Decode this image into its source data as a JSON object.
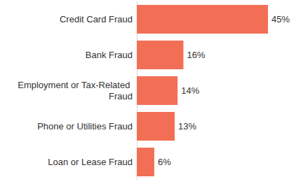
{
  "chart_data": {
    "type": "bar",
    "orientation": "horizontal",
    "categories": [
      "Credit Card Fraud",
      "Bank Fraud",
      "Employment or Tax-Related Fraud",
      "Phone or Utilities Fraud",
      "Loan or Lease Fraud"
    ],
    "values": [
      45,
      16,
      14,
      13,
      6
    ],
    "value_labels": [
      "45%",
      "16%",
      "14%",
      "13%",
      "6%"
    ],
    "color": "#f26f55",
    "xlim": [
      0,
      45
    ],
    "data_labels": true,
    "tick_labels": "y",
    "grid": false
  }
}
